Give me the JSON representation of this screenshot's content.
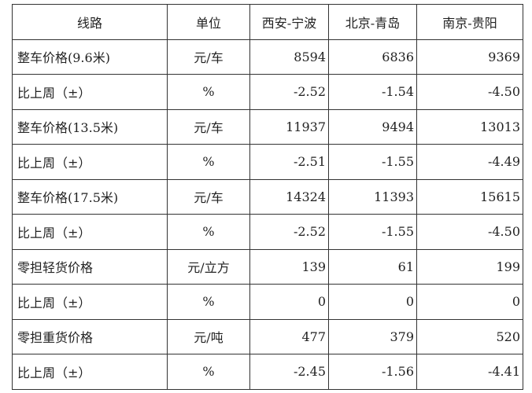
{
  "headers": [
    "线路",
    "单位",
    "西安-宁波",
    "北京-青岛",
    "南京-贵阳"
  ],
  "rows": [
    {
      "name": "整车价格(9.6米)",
      "unit": "元/车",
      "values": [
        "8594",
        "6836",
        "9369"
      ]
    },
    {
      "name": "比上周（±）",
      "unit": "%",
      "values": [
        "-2.52",
        "-1.54",
        "-4.50"
      ]
    },
    {
      "name": "整车价格(13.5米)",
      "unit": "元/车",
      "values": [
        "11937",
        "9494",
        "13013"
      ]
    },
    {
      "name": "比上周（±）",
      "unit": "%",
      "values": [
        "-2.51",
        "-1.55",
        "-4.49"
      ]
    },
    {
      "name": "整车价格(17.5米)",
      "unit": "元/车",
      "values": [
        "14324",
        "11393",
        "15615"
      ]
    },
    {
      "name": "比上周（±）",
      "unit": "%",
      "values": [
        "-2.52",
        "-1.55",
        "-4.50"
      ]
    },
    {
      "name": "零担轻货价格",
      "unit": "元/立方",
      "values": [
        "139",
        "61",
        "199"
      ]
    },
    {
      "name": "比上周（±）",
      "unit": "%",
      "values": [
        "0",
        "0",
        "0"
      ]
    },
    {
      "name": "零担重货价格",
      "unit": "元/吨",
      "values": [
        "477",
        "379",
        "520"
      ]
    },
    {
      "name": "比上周（±）",
      "unit": "%",
      "values": [
        "-2.45",
        "-1.56",
        "-4.41"
      ]
    }
  ]
}
